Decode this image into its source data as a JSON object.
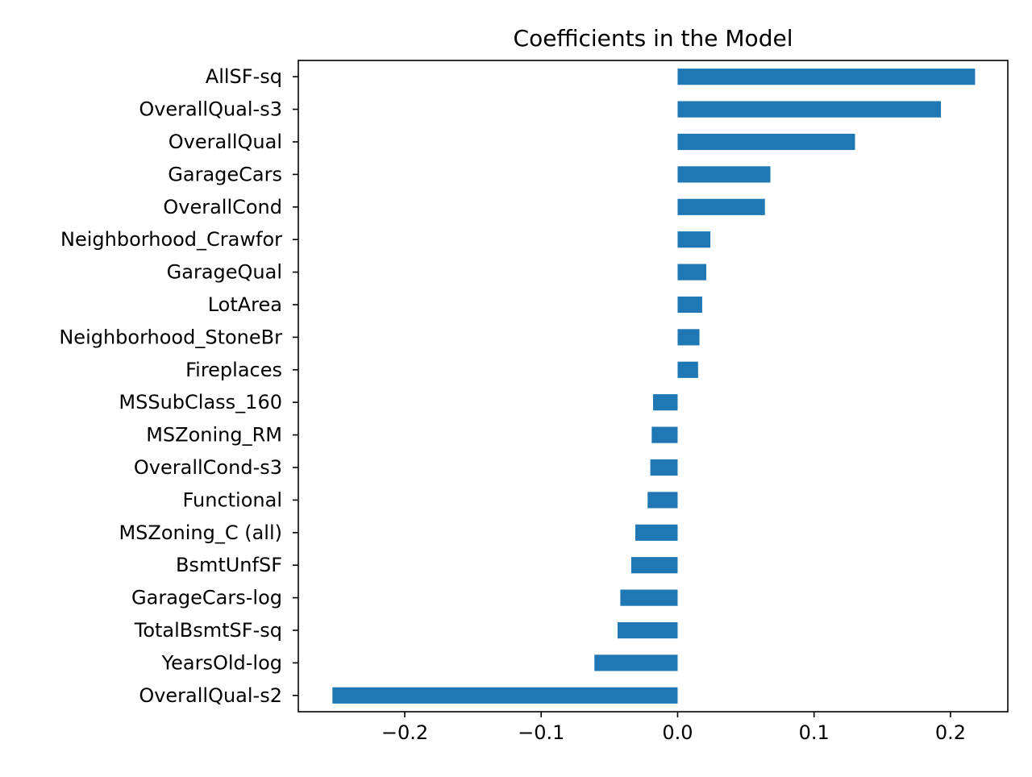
{
  "chart_data": {
    "type": "bar",
    "orientation": "horizontal",
    "title": "Coefficients in the Model",
    "xlabel": "",
    "ylabel": "",
    "xlim": [
      -0.278,
      0.242
    ],
    "xticks": [
      -0.2,
      -0.1,
      0.0,
      0.1,
      0.2
    ],
    "xtick_labels": [
      "−0.2",
      "−0.1",
      "0.0",
      "0.1",
      "0.2"
    ],
    "grid": false,
    "legend": "none",
    "bar_color": "#1f77b4",
    "categories": [
      "AllSF-sq",
      "OverallQual-s3",
      "OverallQual",
      "GarageCars",
      "OverallCond",
      "Neighborhood_Crawfor",
      "GarageQual",
      "LotArea",
      "Neighborhood_StoneBr",
      "Fireplaces",
      "MSSubClass_160",
      "MSZoning_RM",
      "OverallCond-s3",
      "Functional",
      "MSZoning_C (all)",
      "BsmtUnfSF",
      "GarageCars-log",
      "TotalBsmtSF-sq",
      "YearsOld-log",
      "OverallQual-s2"
    ],
    "values": [
      0.218,
      0.193,
      0.13,
      0.068,
      0.064,
      0.024,
      0.021,
      0.018,
      0.016,
      0.015,
      -0.018,
      -0.019,
      -0.02,
      -0.022,
      -0.031,
      -0.034,
      -0.042,
      -0.044,
      -0.061,
      -0.253
    ]
  }
}
